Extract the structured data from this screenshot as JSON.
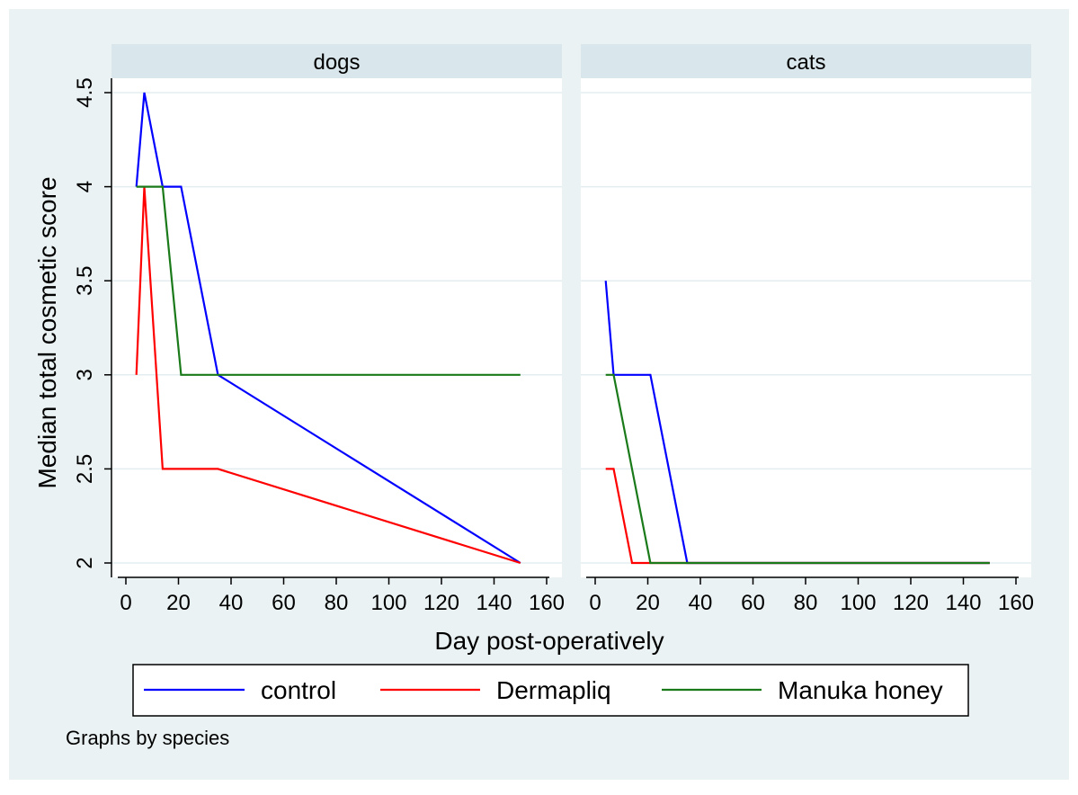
{
  "chart_data": {
    "type": "line",
    "ylabel": "Median total cosmetic score",
    "xlabel": "Day post-operatively",
    "note": "Graphs by species",
    "xlim": [
      0,
      160
    ],
    "ylim": [
      2,
      4.5
    ],
    "xticks": [
      "0",
      "20",
      "40",
      "60",
      "80",
      "100",
      "120",
      "140",
      "160"
    ],
    "yticks": [
      "2",
      "2.5",
      "3",
      "3.5",
      "4",
      "4.5"
    ],
    "grid": "horizontal",
    "legend_position": "bottom",
    "colors": {
      "control": "#0000ff",
      "Dermapliq": "#ff0000",
      "Manuka honey": "#1a7a1a",
      "outer_background": "#eaf2f3",
      "strip": "#d9e6eb"
    },
    "panels": [
      {
        "title": "dogs",
        "series": [
          {
            "name": "control",
            "x": [
              4,
              7,
              14,
              21,
              35,
              150
            ],
            "y": [
              4,
              4.5,
              4,
              4,
              3,
              2
            ]
          },
          {
            "name": "Dermapliq",
            "x": [
              4,
              7,
              14,
              35,
              150
            ],
            "y": [
              3,
              4,
              2.5,
              2.5,
              2
            ]
          },
          {
            "name": "Manuka honey",
            "x": [
              4,
              7,
              14,
              21,
              35,
              150
            ],
            "y": [
              4,
              4,
              4,
              3,
              3,
              3
            ]
          }
        ]
      },
      {
        "title": "cats",
        "series": [
          {
            "name": "control",
            "x": [
              4,
              7,
              21,
              35,
              150
            ],
            "y": [
              3.5,
              3,
              3,
              2,
              2
            ]
          },
          {
            "name": "Dermapliq",
            "x": [
              4,
              7,
              14,
              150
            ],
            "y": [
              2.5,
              2.5,
              2,
              2
            ]
          },
          {
            "name": "Manuka honey",
            "x": [
              4,
              7,
              21,
              150
            ],
            "y": [
              3,
              3,
              2,
              2
            ]
          }
        ]
      }
    ],
    "legend": [
      "control",
      "Dermapliq",
      "Manuka honey"
    ]
  }
}
